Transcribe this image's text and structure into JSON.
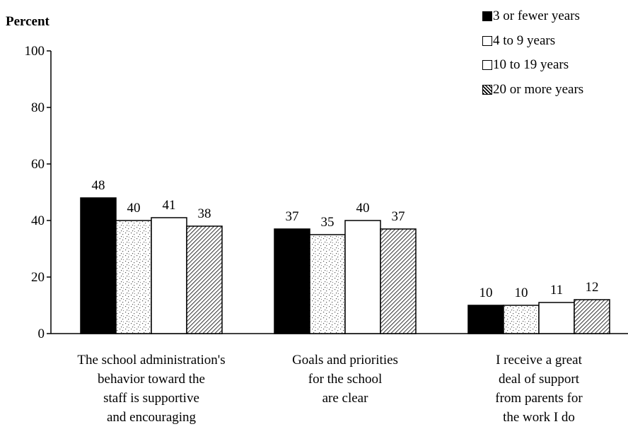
{
  "chart_data": {
    "type": "bar",
    "title": "",
    "ylabel": "Percent",
    "xlabel": "",
    "ylim": [
      0,
      100
    ],
    "yticks": [
      0,
      20,
      40,
      60,
      80,
      100
    ],
    "categories": [
      [
        "The school administration's",
        "behavior toward the",
        "staff is supportive",
        "and encouraging"
      ],
      [
        "Goals and priorities",
        "for the school",
        "are clear"
      ],
      [
        "I receive a great",
        "deal of support",
        "from parents for",
        "the work I do"
      ]
    ],
    "series": [
      {
        "name": "3 or fewer years",
        "values": [
          48,
          37,
          10
        ],
        "pattern": "solid"
      },
      {
        "name": "4 to 9 years",
        "values": [
          40,
          35,
          10
        ],
        "pattern": "stipple"
      },
      {
        "name": "10 to 19 years",
        "values": [
          41,
          40,
          11
        ],
        "pattern": "white"
      },
      {
        "name": "20 or more years",
        "values": [
          38,
          37,
          12
        ],
        "pattern": "hatch"
      }
    ],
    "grid": false,
    "legend_position": "top-right"
  }
}
